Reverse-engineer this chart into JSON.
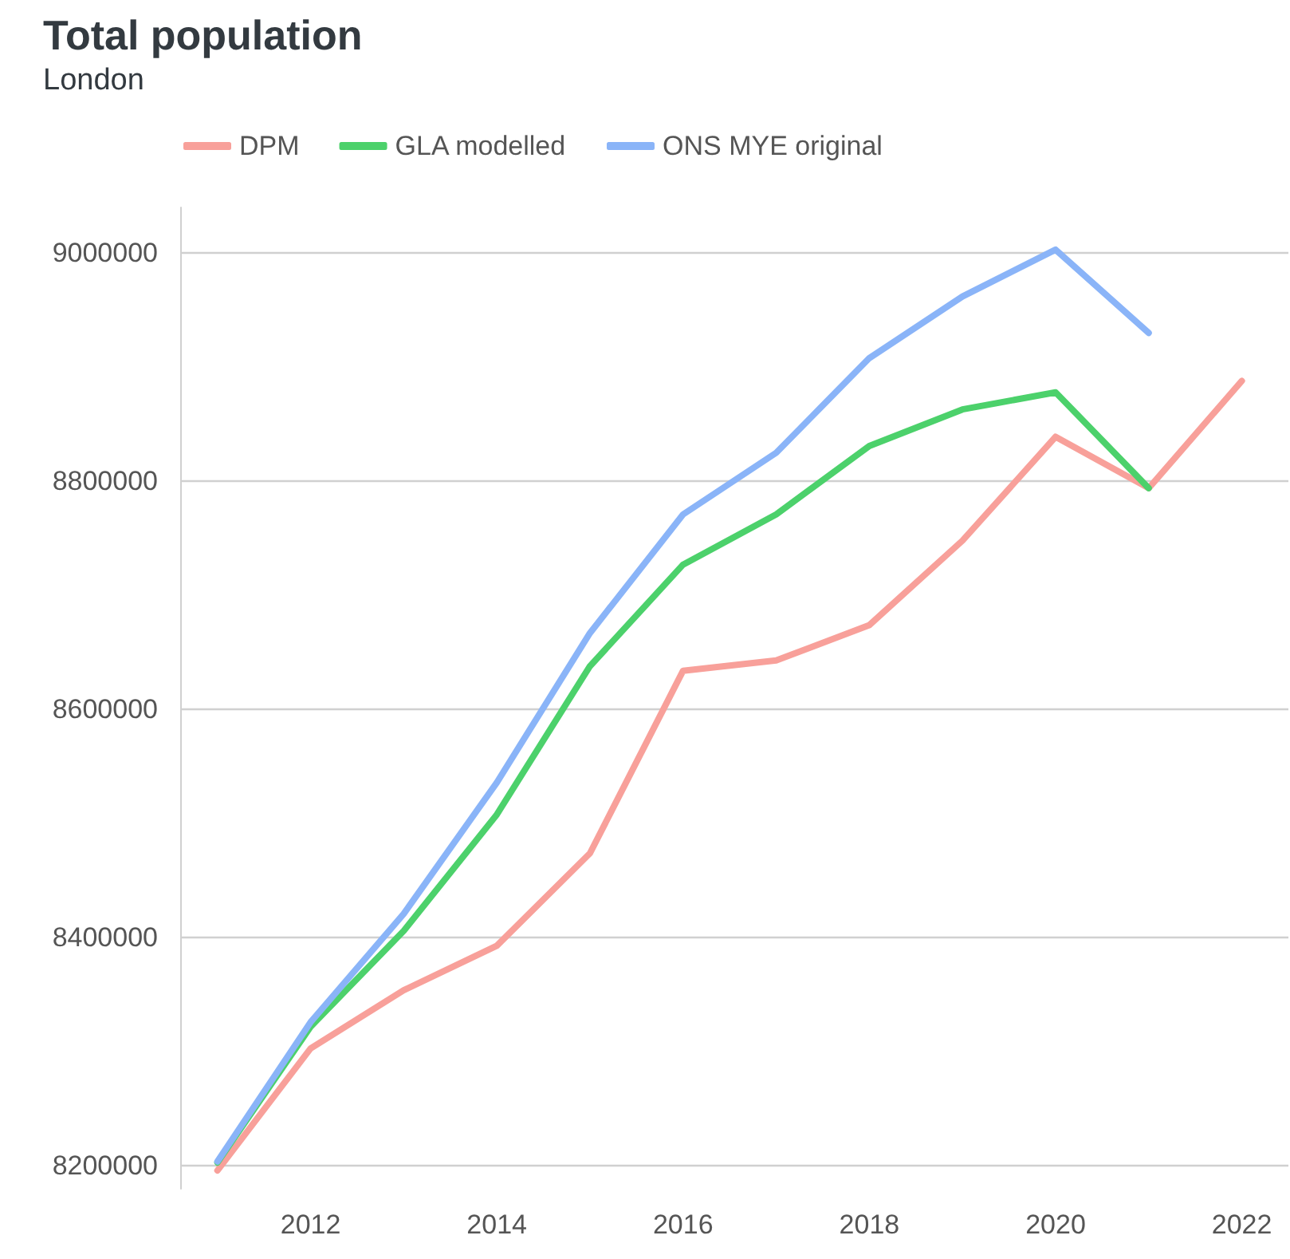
{
  "chart_data": {
    "type": "line",
    "title": "Total population",
    "subtitle": "London",
    "x": [
      2011,
      2012,
      2013,
      2014,
      2015,
      2016,
      2017,
      2018,
      2019,
      2020,
      2021,
      2022
    ],
    "series": [
      {
        "name": "DPM",
        "color": "#f8a09a",
        "values": [
          8196000,
          8303000,
          8354000,
          8393000,
          8474000,
          8634000,
          8643000,
          8674000,
          8748000,
          8839000,
          8794000,
          8888000
        ]
      },
      {
        "name": "GLA modelled",
        "color": "#4cd16b",
        "values": [
          8203000,
          8322000,
          8406000,
          8508000,
          8638000,
          8727000,
          8771000,
          8831000,
          8863000,
          8878000,
          8794000,
          null
        ]
      },
      {
        "name": "ONS MYE original",
        "color": "#8ab4f8",
        "values": [
          8204000,
          8326000,
          8421000,
          8536000,
          8667000,
          8771000,
          8825000,
          8908000,
          8962000,
          9003000,
          8930000,
          null
        ]
      }
    ],
    "xlim": [
      2010.6,
      2022.5
    ],
    "xticks": [
      2012,
      2014,
      2016,
      2018,
      2020,
      2022
    ],
    "ylim": [
      8180000,
      9040000
    ],
    "yticks": [
      8200000,
      8400000,
      8600000,
      8800000,
      9000000
    ],
    "grid": "y",
    "legend": "top left",
    "marker": "none",
    "line_style": "solid"
  }
}
